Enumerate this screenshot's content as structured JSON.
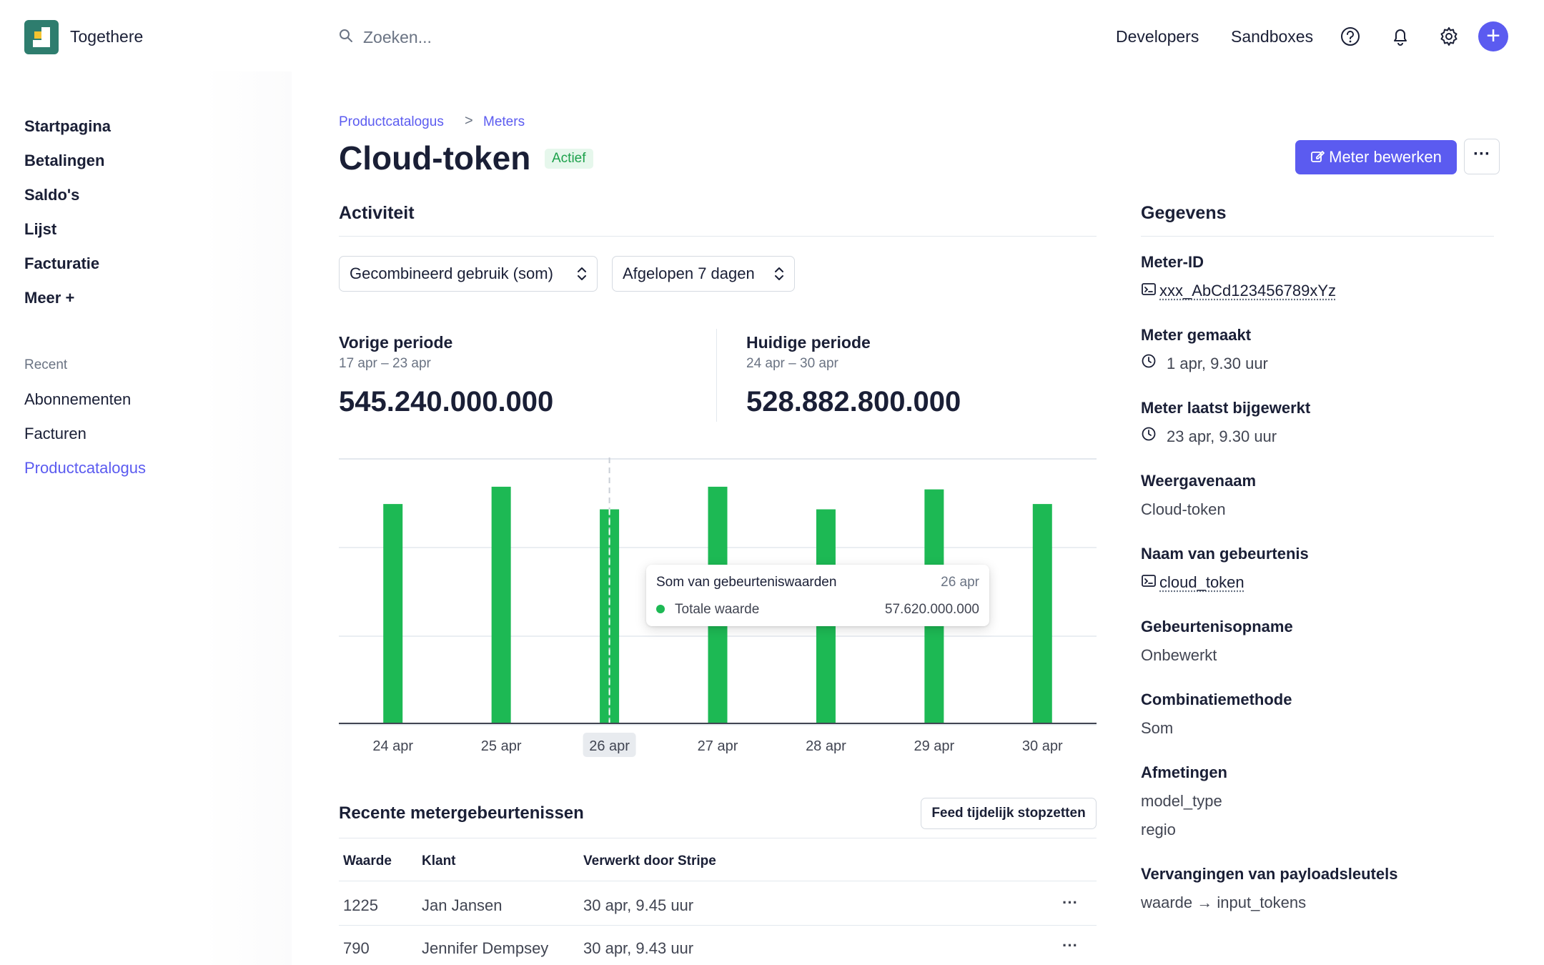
{
  "header": {
    "brand": "Togethere",
    "search_placeholder": "Zoeken...",
    "links": [
      "Developers",
      "Sandboxes"
    ]
  },
  "sidebar": {
    "items": [
      "Startpagina",
      "Betalingen",
      "Saldo's",
      "Lijst",
      "Facturatie",
      "Meer +"
    ],
    "recent_label": "Recent",
    "recent_items": [
      "Abonnementen",
      "Facturen",
      "Productcatalogus"
    ]
  },
  "breadcrumb": {
    "first": "Productcatalogus",
    "sep": ">",
    "second": "Meters"
  },
  "page": {
    "title": "Cloud-token",
    "status": "Actief",
    "edit_label": "Meter bewerken",
    "more_label": "···"
  },
  "activity": {
    "heading": "Activiteit",
    "select1": "Gecombineerd gebruik (som)",
    "select2": "Afgelopen 7 dagen",
    "chevron": "⌃⌄",
    "previous": {
      "label": "Vorige periode",
      "range": "17 apr – 23 apr",
      "value": "545.240.000.000"
    },
    "current": {
      "label": "Huidige periode",
      "range": "24 apr – 30 apr",
      "value": "528.882.800.000"
    }
  },
  "chart_data": {
    "type": "bar",
    "categories": [
      "24 apr",
      "25 apr",
      "26 apr",
      "27 apr",
      "28 apr",
      "29 apr",
      "30 apr"
    ],
    "values": [
      82.5,
      89,
      80.5,
      89,
      80.5,
      88,
      82.5
    ],
    "ylim": [
      0,
      100
    ],
    "highlighted_category": "26 apr",
    "bar_color": "#1db954",
    "tooltip": {
      "title": "Som van gebeurteniswaarden",
      "date": "26 apr",
      "label": "Totale waarde",
      "value": "57.620.000.000"
    }
  },
  "events": {
    "heading": "Recente metergebeurtenissen",
    "pause_label": "Feed tijdelijk stopzetten",
    "columns": [
      "Waarde",
      "Klant",
      "Verwerkt door Stripe"
    ],
    "rows": [
      {
        "value": "1225",
        "customer": "Jan Jansen",
        "processed": "30 apr, 9.45 uur"
      },
      {
        "value": "790",
        "customer": "Jennifer Dempsey",
        "processed": "30 apr, 9.43 uur"
      }
    ],
    "row_more": "···"
  },
  "details": {
    "heading": "Gegevens",
    "meter_id_label": "Meter-ID",
    "meter_id": "xxx_AbCd123456789xYz",
    "created_label": "Meter gemaakt",
    "created": "1 apr, 9.30 uur",
    "updated_label": "Meter laatst bijgewerkt",
    "updated": "23 apr, 9.30 uur",
    "display_name_label": "Weergavenaam",
    "display_name": "Cloud-token",
    "event_name_label": "Naam van gebeurtenis",
    "event_name": "cloud_token",
    "ingestion_label": "Gebeurtenisopname",
    "ingestion": "Onbewerkt",
    "method_label": "Combinatiemethode",
    "method": "Som",
    "dimensions_label": "Afmetingen",
    "dimensions": [
      "model_type",
      "regio"
    ],
    "overrides_label": "Vervangingen van payloadsleutels",
    "overrides": "waarde → input_tokens"
  },
  "colors": {
    "accent": "#5b5bf0",
    "success": "#1db954",
    "badge_bg": "#e6f7ec"
  }
}
